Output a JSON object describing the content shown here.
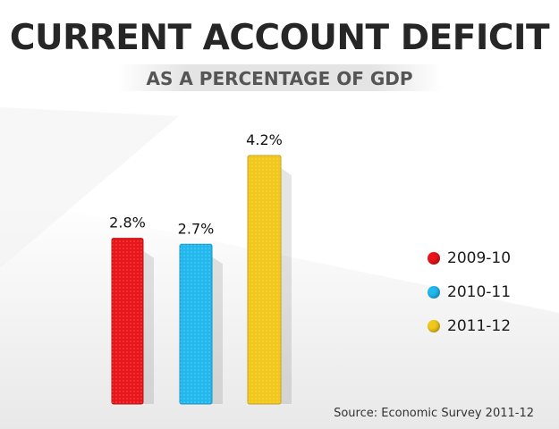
{
  "title": "CURRENT ACCOUNT DEFICIT",
  "subtitle": "AS A PERCENTAGE OF GDP",
  "source": "Source: Economic Survey 2011-12",
  "chart_data": {
    "type": "bar",
    "categories": [
      "2009-10",
      "2010-11",
      "2011-12"
    ],
    "values": [
      2.8,
      2.7,
      4.2
    ],
    "value_labels": [
      "2.8%",
      "2.7%",
      "4.2%"
    ],
    "colors": [
      "#e8151b",
      "#21b8ee",
      "#f2c81c"
    ],
    "unit": "%",
    "ylim": [
      0,
      4.2
    ],
    "grid": false,
    "legend_position": "right"
  }
}
